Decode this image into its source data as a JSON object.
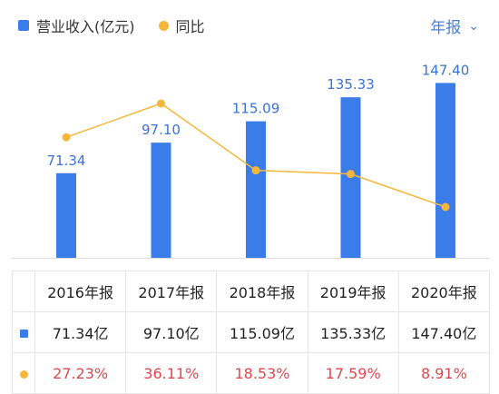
{
  "legend": {
    "bar_label": "营业收入(亿元)",
    "line_label": "同比"
  },
  "period_selector": {
    "label": "年报"
  },
  "colors": {
    "bar": "#3B7DE8",
    "line": "#F5B73B",
    "bar_label": "#3A72D6",
    "pct": "#E0474C",
    "accent": "#4A7FD8"
  },
  "chart_data": {
    "type": "bar",
    "categories": [
      "2016年报",
      "2017年报",
      "2018年报",
      "2019年报",
      "2020年报"
    ],
    "series": [
      {
        "name": "营业收入(亿元)",
        "type": "bar",
        "values": [
          71.34,
          97.1,
          115.09,
          135.33,
          147.4
        ],
        "labels": [
          "71.34",
          "97.10",
          "115.09",
          "135.33",
          "147.40"
        ]
      },
      {
        "name": "同比",
        "type": "line",
        "values": [
          27.23,
          36.11,
          18.53,
          17.59,
          8.91
        ]
      }
    ],
    "ylim": [
      0,
      150
    ]
  },
  "table": {
    "headers": [
      "2016年报",
      "2017年报",
      "2018年报",
      "2019年报",
      "2020年报"
    ],
    "revenue_row": [
      "71.34亿",
      "97.10亿",
      "115.09亿",
      "135.33亿",
      "147.40亿"
    ],
    "growth_row": [
      "27.23%",
      "36.11%",
      "18.53%",
      "17.59%",
      "8.91%"
    ]
  }
}
